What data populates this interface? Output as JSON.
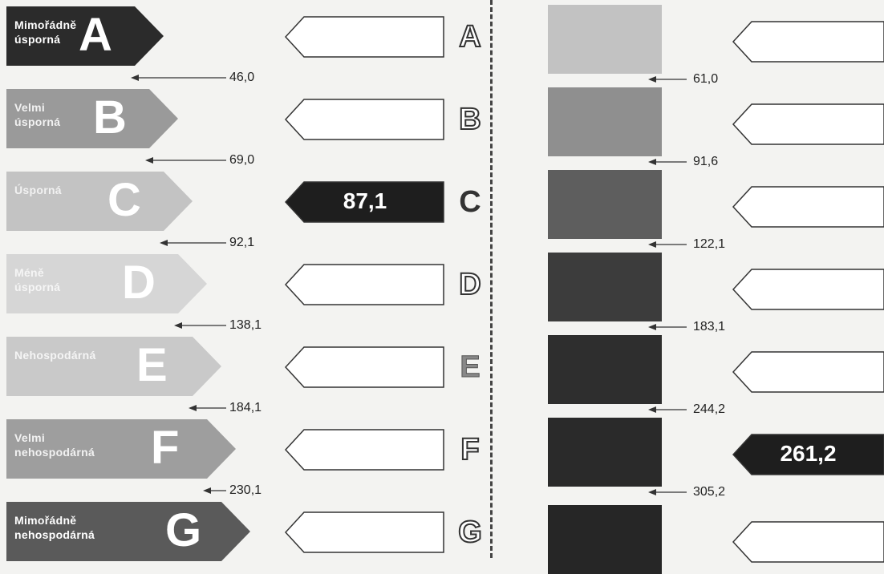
{
  "bands": [
    {
      "letter": "A",
      "label": "Mimořádně\núsporná",
      "color": "#2b2b2b",
      "text_color": "#ffffff",
      "letter_color": "#ffffff"
    },
    {
      "letter": "B",
      "label": "Velmi\núsporná",
      "color": "#9a9a9a",
      "text_color": "#f2f2f2",
      "letter_color": "#ffffff"
    },
    {
      "letter": "C",
      "label": "Úsporná",
      "color": "#c3c3c3",
      "text_color": "#f2f2f2",
      "letter_color": "#ffffff"
    },
    {
      "letter": "D",
      "label": "Méně\núsporná",
      "color": "#d6d6d6",
      "text_color": "#f5f5f5",
      "letter_color": "#ffffff"
    },
    {
      "letter": "E",
      "label": "Nehospodárná",
      "color": "#c9c9c9",
      "text_color": "#f5f5f5",
      "letter_color": "#ffffff"
    },
    {
      "letter": "F",
      "label": "Velmi\nnehospodárná",
      "color": "#9e9e9e",
      "text_color": "#f2f2f2",
      "letter_color": "#ffffff"
    },
    {
      "letter": "G",
      "label": "Mimořádně\nnehospodárná",
      "color": "#5a5a5a",
      "text_color": "#ffffff",
      "letter_color": "#ffffff"
    }
  ],
  "left_thresholds": [
    "46,0",
    "69,0",
    "92,1",
    "138,1",
    "184,1",
    "230,1"
  ],
  "left_value": {
    "band": "C",
    "value": "87,1"
  },
  "right_thresholds": [
    "61,0",
    "91,6",
    "122,1",
    "183,1",
    "244,2",
    "305,2"
  ],
  "right_value": {
    "band": "F",
    "value": "261,2"
  },
  "right_squares": [
    "#c2c2c2",
    "#8f8f8f",
    "#5e5e5e",
    "#3c3c3c",
    "#2e2e2e",
    "#2a2a2a",
    "#262626"
  ]
}
